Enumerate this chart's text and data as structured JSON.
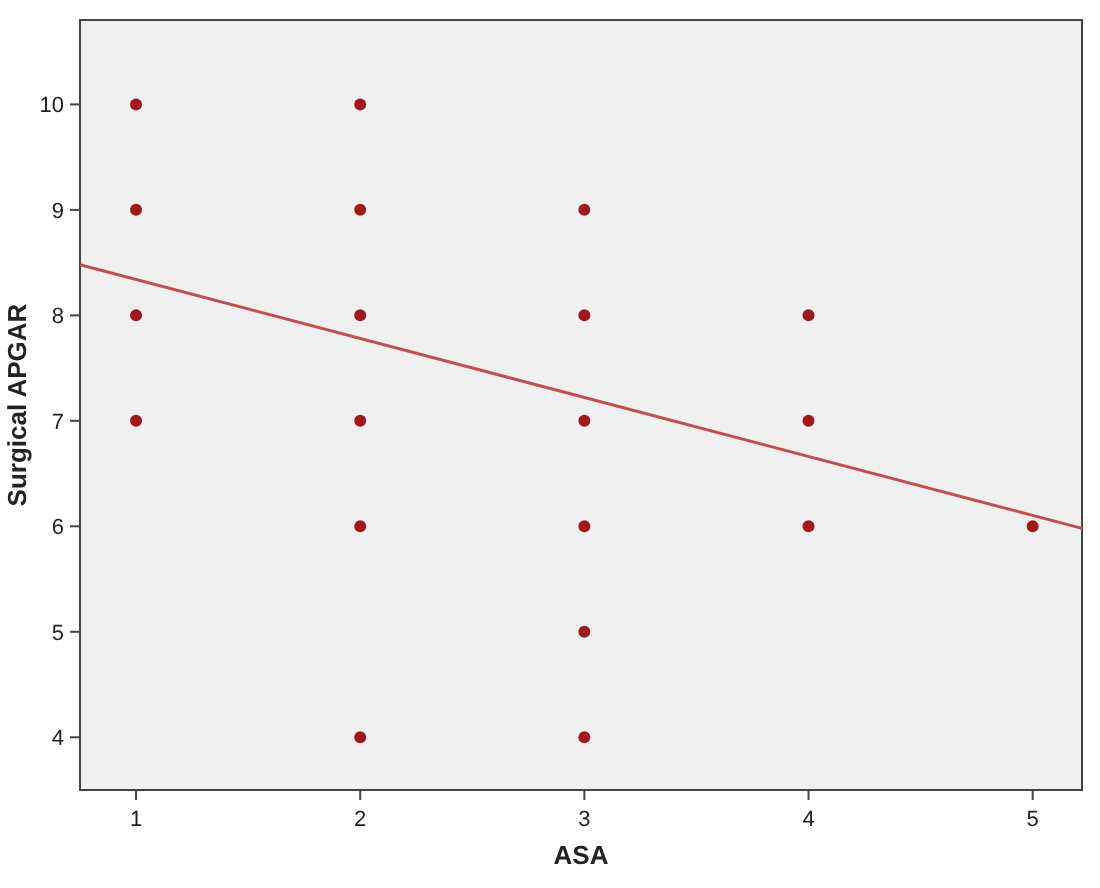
{
  "chart_data": {
    "type": "scatter",
    "xlabel": "ASA",
    "ylabel": "Surgical APGAR",
    "xlim": [
      0.75,
      5.22
    ],
    "ylim": [
      3.5,
      10.8
    ],
    "xticks": [
      1,
      2,
      3,
      4,
      5
    ],
    "yticks": [
      4,
      5,
      6,
      7,
      8,
      9,
      10
    ],
    "grid": false,
    "marker": "circle",
    "series": [
      {
        "color": "#9e1a1a",
        "x": [
          1,
          1,
          1,
          1,
          2,
          2,
          2,
          2,
          2,
          2,
          3,
          3,
          3,
          3,
          3,
          3,
          4,
          4,
          4,
          5
        ],
        "values": [
          10,
          9,
          8,
          7,
          10,
          9,
          8,
          7,
          6,
          4,
          9,
          8,
          7,
          6,
          5,
          4,
          8,
          7,
          6,
          6
        ]
      },
      {
        "type": "line",
        "color": "#c0504d",
        "marker": "none",
        "line_style": "solid",
        "x": [
          0.75,
          5.22
        ],
        "values": [
          8.48,
          5.98
        ]
      }
    ]
  }
}
